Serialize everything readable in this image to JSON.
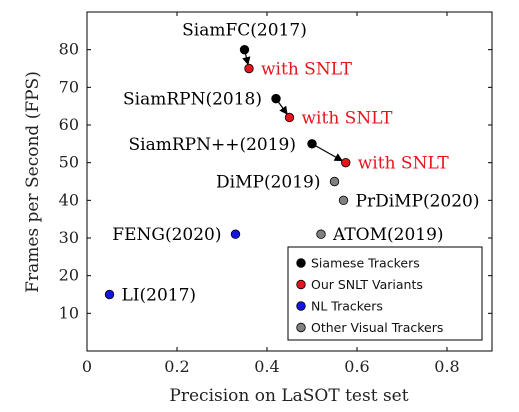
{
  "chart_data": {
    "type": "scatter",
    "title": "",
    "xlabel": "Precision on LaSOT test set",
    "ylabel": "Frames per Second (FPS)",
    "xlim": [
      0,
      0.9
    ],
    "ylim": [
      0,
      90
    ],
    "x_ticks": [
      "0",
      "0.2",
      "0.4",
      "0.6",
      "0.8"
    ],
    "x_tick_values": [
      0,
      0.2,
      0.4,
      0.6,
      0.8
    ],
    "y_ticks": [
      "10",
      "20",
      "30",
      "40",
      "50",
      "60",
      "70",
      "80"
    ],
    "y_tick_values": [
      10,
      20,
      30,
      40,
      50,
      60,
      70,
      80
    ],
    "grid": false,
    "legend_position": "bottom-right",
    "colors": {
      "siamese": "#000000",
      "snlt": "#e8141c",
      "nl": "#1414e6",
      "other": "#808080"
    },
    "series": [
      {
        "name": "Siamese Trackers",
        "color_key": "siamese",
        "points": [
          {
            "label": "SiamFC(2017)",
            "x": 0.35,
            "y": 80
          },
          {
            "label": "SiamRPN(2018)",
            "x": 0.42,
            "y": 67
          },
          {
            "label": "SiamRPN++(2019)",
            "x": 0.5,
            "y": 55
          }
        ]
      },
      {
        "name": "Our SNLT Variants",
        "color_key": "snlt",
        "points": [
          {
            "label": "with SNLT",
            "x": 0.36,
            "y": 75
          },
          {
            "label": "with SNLT",
            "x": 0.45,
            "y": 62
          },
          {
            "label": "with SNLT",
            "x": 0.575,
            "y": 50
          }
        ]
      },
      {
        "name": "NL Trackers",
        "color_key": "nl",
        "points": [
          {
            "label": "FENG(2020)",
            "x": 0.33,
            "y": 31
          },
          {
            "label": "LI(2017)",
            "x": 0.05,
            "y": 15
          }
        ]
      },
      {
        "name": "Other Visual Trackers",
        "color_key": "other",
        "points": [
          {
            "label": "DiMP(2019)",
            "x": 0.55,
            "y": 45
          },
          {
            "label": "PrDiMP(2020)",
            "x": 0.57,
            "y": 40
          },
          {
            "label": "ATOM(2019)",
            "x": 0.52,
            "y": 31
          }
        ]
      }
    ],
    "arrows": [
      {
        "from": [
          0.35,
          80
        ],
        "to": [
          0.36,
          75
        ]
      },
      {
        "from": [
          0.42,
          67
        ],
        "to": [
          0.45,
          62
        ]
      },
      {
        "from": [
          0.5,
          55
        ],
        "to": [
          0.575,
          50
        ]
      }
    ],
    "legend": [
      {
        "label": "Siamese Trackers",
        "color_key": "siamese"
      },
      {
        "label": "Our SNLT Variants",
        "color_key": "snlt"
      },
      {
        "label": "NL Trackers",
        "color_key": "nl"
      },
      {
        "label": "Other Visual Trackers",
        "color_key": "other"
      }
    ]
  }
}
